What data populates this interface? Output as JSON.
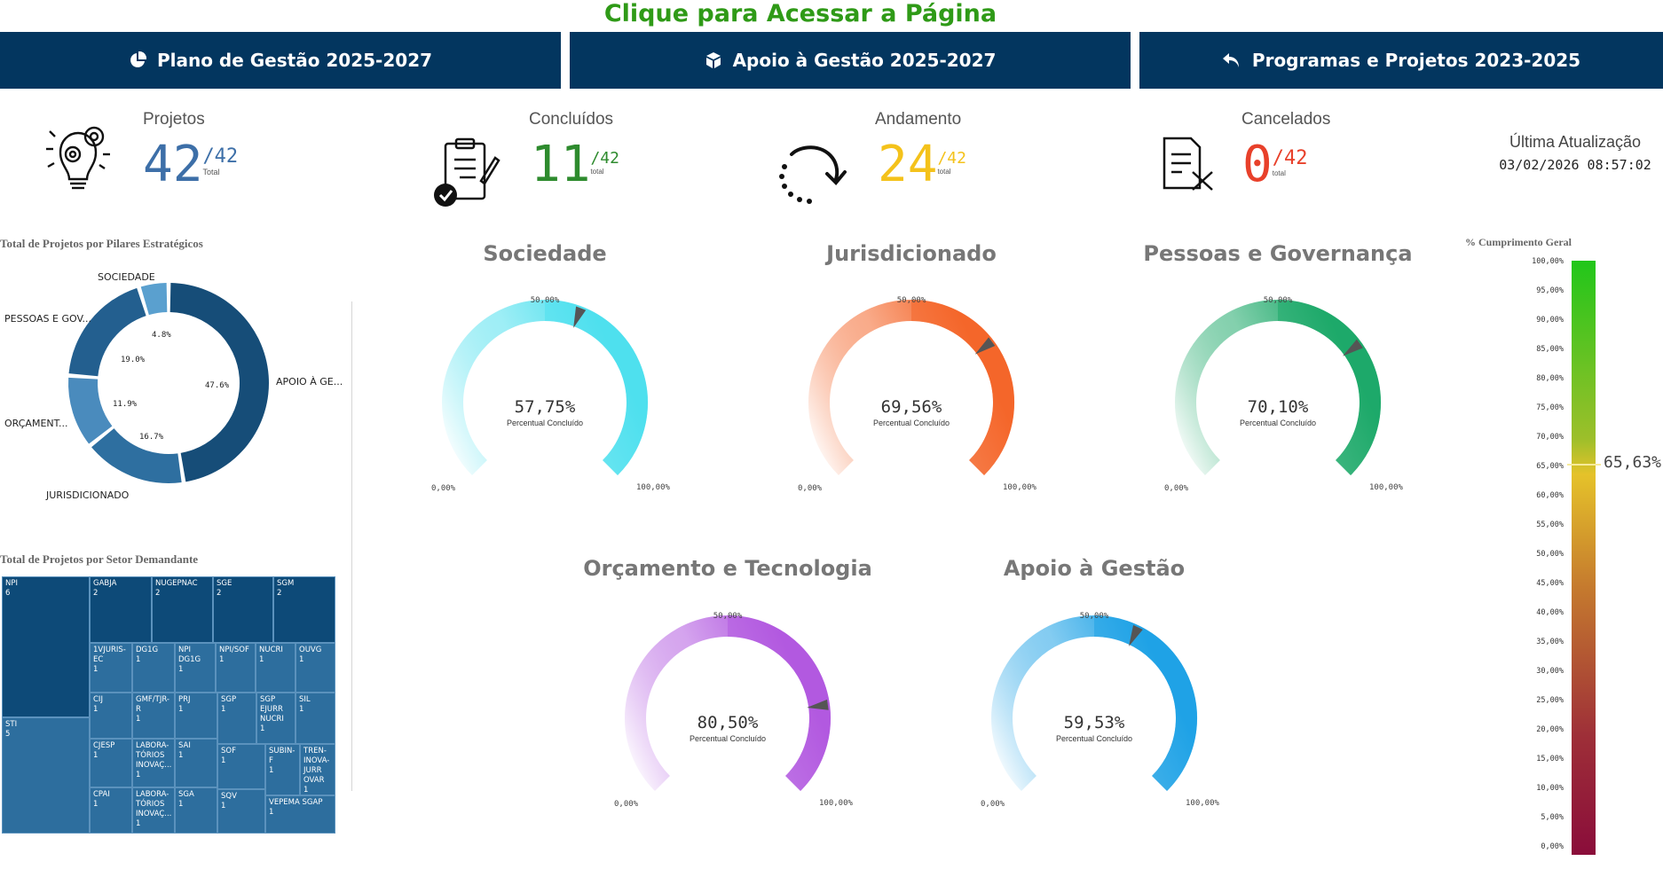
{
  "header": {
    "title": "Clique para Acessar a Página"
  },
  "nav": [
    {
      "label": "Plano de Gestão 2025-2027",
      "icon": "pie-chart-icon"
    },
    {
      "label": "Apoio à Gestão 2025-2027",
      "icon": "cube-icon"
    },
    {
      "label": "Programas e Projetos 2023-2025",
      "icon": "back-arrow-icon"
    }
  ],
  "kpis": {
    "projetos": {
      "label": "Projetos",
      "value": "42",
      "den": "/42",
      "sub": "Total",
      "color": "#3d6fa8"
    },
    "concluidos": {
      "label": "Concluídos",
      "value": "11",
      "den": "/42",
      "sub": "total",
      "color": "#2e8b2e"
    },
    "andamento": {
      "label": "Andamento",
      "value": "24",
      "den": "/42",
      "sub": "total",
      "color": "#f4c21b"
    },
    "cancelados": {
      "label": "Cancelados",
      "value": "0",
      "den": "/42",
      "sub": "total",
      "color": "#e8402a"
    }
  },
  "update": {
    "label": "Última Atualização",
    "value": "03/02/2026 08:57:02"
  },
  "donut": {
    "title": "Total de Projetos por Pilares Estratégicos",
    "labels": {
      "sociedade": "SOCIEDADE",
      "pessoas": "PESSOAS E GOV...",
      "orcamento": "ORÇAMENT...",
      "jurisdicionado": "JURISDICIONADO",
      "apoio": "APOIO À GE..."
    },
    "pcts": {
      "sociedade": "4.8%",
      "pessoas": "19.0%",
      "orcamento": "11.9%",
      "jurisdicionado": "16.7%",
      "apoio": "47.6%"
    }
  },
  "treemap": {
    "title": "Total de Projetos por Setor Demandante",
    "cells": [
      [
        "NPI",
        "6"
      ],
      [
        "GABJA",
        "2"
      ],
      [
        "NUGEPNAC",
        "2"
      ],
      [
        "SGE",
        "2"
      ],
      [
        "SGM",
        "2"
      ],
      [
        "1VJURIS-EC",
        "1"
      ],
      [
        "DG1G",
        "1"
      ],
      [
        "NPI DG1G",
        "1"
      ],
      [
        "NPI/SOF",
        "1"
      ],
      [
        "NUCRI",
        "1"
      ],
      [
        "OUVG",
        "1"
      ],
      [
        "STI",
        "5"
      ],
      [
        "CIJ",
        "1"
      ],
      [
        "GMF/TJR-R",
        "1"
      ],
      [
        "PRJ",
        "1"
      ],
      [
        "SGP",
        "1"
      ],
      [
        "SGP EJURR NUCRI",
        "1"
      ],
      [
        "SIL",
        "1"
      ],
      [
        "CJESP",
        "1"
      ],
      [
        "LABORA-TÓRIOS INOVAÇ...",
        "1"
      ],
      [
        "SAI",
        "1"
      ],
      [
        "SOF",
        "1"
      ],
      [
        "SUBIN-F",
        "1"
      ],
      [
        "TREN-INOVA-JURR OVAR",
        "1"
      ],
      [
        "CPAI",
        "1"
      ],
      [
        "LABORA-TÓRIOS INOVAÇ...",
        "1"
      ],
      [
        "SGA",
        "1"
      ],
      [
        "SQV",
        "1"
      ],
      [
        "VEPEMA SGAP",
        "1"
      ]
    ]
  },
  "gauges": [
    {
      "title": "Sociedade",
      "value": "57,75%",
      "pct": 57.75,
      "sub": "Percentual Concluído",
      "c0": "#ffffff",
      "c1": "#4fe0ee",
      "min": "0,00%",
      "mid": "50,00%",
      "max": "100,00%"
    },
    {
      "title": "Jurisdicionado",
      "value": "69,56%",
      "pct": 69.56,
      "sub": "Percentual Concluído",
      "c0": "#ffffff",
      "c1": "#f4662a",
      "min": "0,00%",
      "mid": "50,00%",
      "max": "100,00%"
    },
    {
      "title": "Pessoas e Governança",
      "value": "70,10%",
      "pct": 70.1,
      "sub": "Percentual Concluído",
      "c0": "#ffffff",
      "c1": "#1ea96a",
      "min": "0,00%",
      "mid": "50,00%",
      "max": "100,00%"
    },
    {
      "title": "Orçamento e Tecnologia",
      "value": "80,50%",
      "pct": 80.5,
      "sub": "Percentual Concluído",
      "c0": "#ffffff",
      "c1": "#b25ae0",
      "min": "0,00%",
      "mid": "50,00%",
      "max": "100,00%"
    },
    {
      "title": "Apoio à Gestão",
      "value": "59,53%",
      "pct": 59.53,
      "sub": "Percentual Concluído",
      "c0": "#ffffff",
      "c1": "#1fa2e6",
      "min": "0,00%",
      "mid": "50,00%",
      "max": "100,00%"
    }
  ],
  "overall": {
    "title": "% Cumprimento Geral",
    "value": "65,63%",
    "pct": 65.63,
    "ticks": [
      "100,00%",
      "95,00%",
      "90,00%",
      "85,00%",
      "80,00%",
      "75,00%",
      "70,00%",
      "65,00%",
      "60,00%",
      "55,00%",
      "50,00%",
      "45,00%",
      "40,00%",
      "35,00%",
      "30,00%",
      "25,00%",
      "20,00%",
      "15,00%",
      "10,00%",
      "5,00%",
      "0,00%"
    ]
  }
}
